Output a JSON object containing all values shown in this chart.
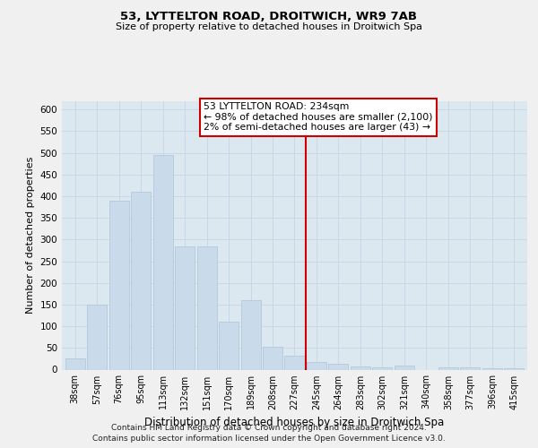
{
  "title": "53, LYTTELTON ROAD, DROITWICH, WR9 7AB",
  "subtitle": "Size of property relative to detached houses in Droitwich Spa",
  "xlabel": "Distribution of detached houses by size in Droitwich Spa",
  "ylabel": "Number of detached properties",
  "categories": [
    "38sqm",
    "57sqm",
    "76sqm",
    "95sqm",
    "113sqm",
    "132sqm",
    "151sqm",
    "170sqm",
    "189sqm",
    "208sqm",
    "227sqm",
    "245sqm",
    "264sqm",
    "283sqm",
    "302sqm",
    "321sqm",
    "340sqm",
    "358sqm",
    "377sqm",
    "396sqm",
    "415sqm"
  ],
  "values": [
    25,
    150,
    390,
    410,
    495,
    285,
    285,
    110,
    160,
    53,
    32,
    18,
    13,
    8,
    5,
    10,
    0,
    5,
    6,
    4,
    4
  ],
  "bar_color": "#c9daea",
  "bar_edgecolor": "#adc4d8",
  "vline_color": "#cc0000",
  "annotation_title": "53 LYTTELTON ROAD: 234sqm",
  "annotation_line1": "← 98% of detached houses are smaller (2,100)",
  "annotation_line2": "2% of semi-detached houses are larger (43) →",
  "ylim": [
    0,
    620
  ],
  "yticks": [
    0,
    50,
    100,
    150,
    200,
    250,
    300,
    350,
    400,
    450,
    500,
    550,
    600
  ],
  "grid_color": "#c8d8e8",
  "background_color": "#dce8f0",
  "fig_background": "#f0f0f0",
  "footer1": "Contains HM Land Registry data © Crown copyright and database right 2024.",
  "footer2": "Contains public sector information licensed under the Open Government Licence v3.0."
}
